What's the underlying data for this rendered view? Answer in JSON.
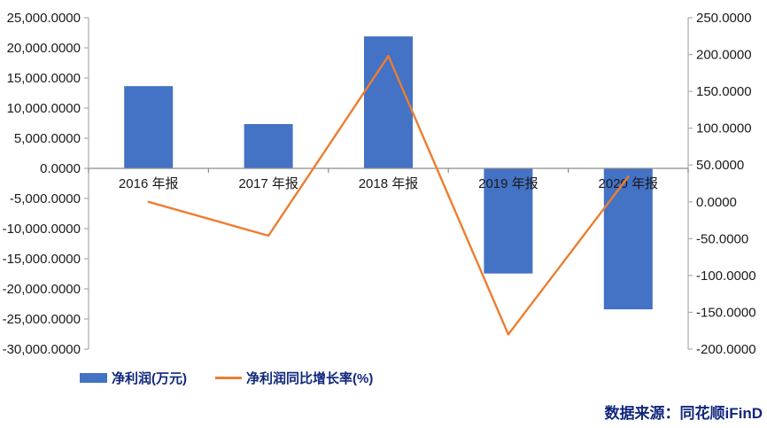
{
  "chart_data": {
    "type": "combo",
    "title": "",
    "categories": [
      "2016 年报",
      "2017 年报",
      "2018 年报",
      "2019 年报",
      "2020 年报"
    ],
    "series": [
      {
        "name": "净利润(万元)",
        "type": "bar",
        "axis": "left",
        "color": "#4472C4",
        "values": [
          13650,
          7350,
          21900,
          -17450,
          -23400
        ]
      },
      {
        "name": "净利润同比增长率(%)",
        "type": "line",
        "axis": "right",
        "color": "#ED7D31",
        "values": [
          0,
          -46,
          198,
          -180,
          34
        ]
      }
    ],
    "left_axis": {
      "min": -30000,
      "max": 25000,
      "step": 5000,
      "tick_labels": [
        "25,000.0000",
        "20,000.0000",
        "15,000.0000",
        "10,000.0000",
        "5,000.0000",
        "0.0000",
        "-5,000.0000",
        "-10,000.0000",
        "-15,000.0000",
        "-20,000.0000",
        "-25,000.0000",
        "-30,000.0000"
      ]
    },
    "right_axis": {
      "min": -200,
      "max": 250,
      "step": 50,
      "tick_labels": [
        "250.0000",
        "200.0000",
        "150.0000",
        "100.0000",
        "50.0000",
        "0.0000",
        "-50.0000",
        "-100.0000",
        "-150.0000",
        "-200.0000"
      ]
    },
    "grid": false,
    "legend_position": "bottom-left"
  },
  "legend": {
    "items": [
      {
        "label": "净利润(万元)",
        "swatch": "bar"
      },
      {
        "label": "净利润同比增长率(%)",
        "swatch": "line"
      }
    ]
  },
  "footer": {
    "source_label": "数据来源：同花顺iFinD"
  },
  "colors": {
    "bar": "#4472C4",
    "line": "#ED7D31",
    "axis_line": "#ABABAB",
    "category_axis_line": "#8C8C8C",
    "tick_label": "#1A1A1A",
    "legend_text": "#10277C",
    "footer_text": "#10277C",
    "background": "#FFFFFF"
  }
}
